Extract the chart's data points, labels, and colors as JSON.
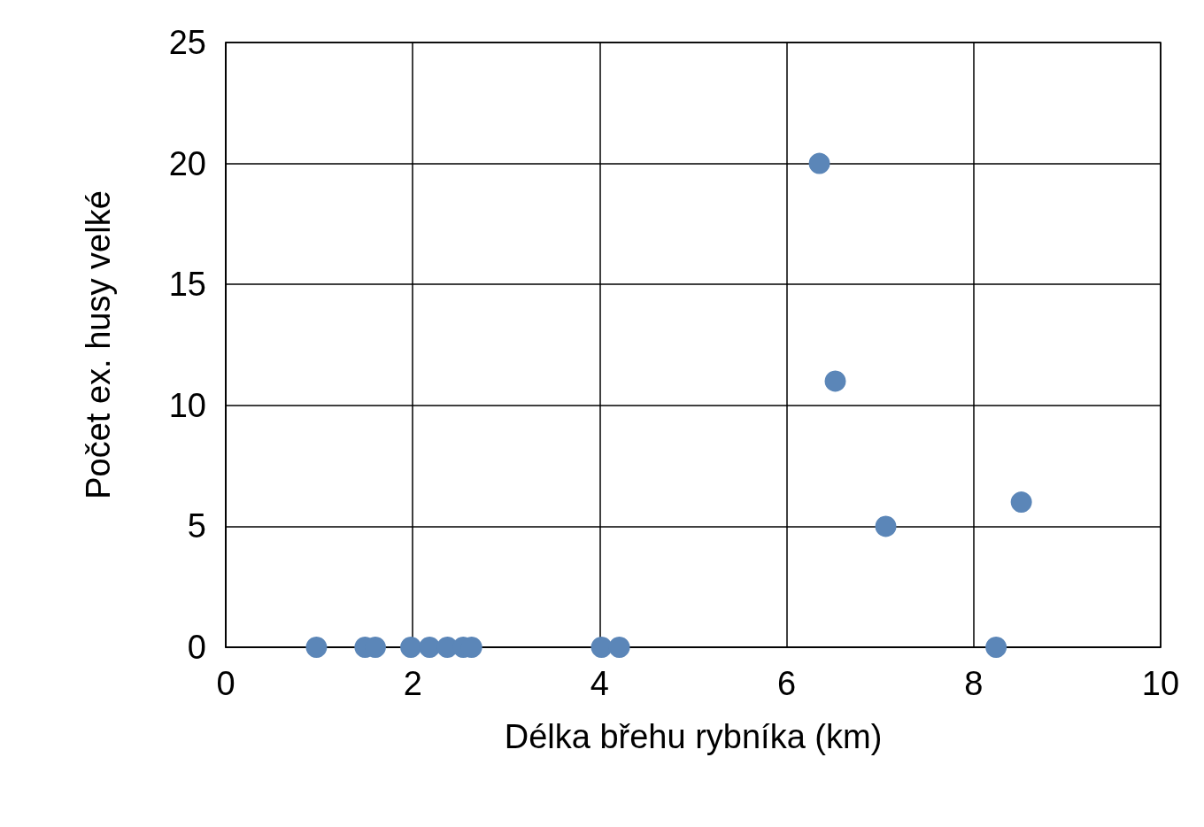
{
  "chart_data": {
    "type": "scatter",
    "xlabel": "Délka břehu rybníka (km)",
    "ylabel": "Počet ex. husy velké",
    "x": [
      0.97,
      1.49,
      1.6,
      1.98,
      2.18,
      2.37,
      2.54,
      2.63,
      4.02,
      4.21,
      6.35,
      6.52,
      7.06,
      8.24,
      8.51
    ],
    "series": [
      {
        "color": "#5b86b8",
        "values": [
          0,
          0,
          0,
          0,
          0,
          0,
          0,
          0,
          0,
          0,
          20,
          11,
          5,
          0,
          6
        ]
      }
    ],
    "xlim": [
      0,
      10
    ],
    "xticks": [
      0,
      2,
      4,
      6,
      8,
      10
    ],
    "ylim": [
      0,
      25
    ],
    "yticks": [
      0,
      5,
      10,
      15,
      20,
      25
    ],
    "grid": true,
    "marker": "circle"
  }
}
